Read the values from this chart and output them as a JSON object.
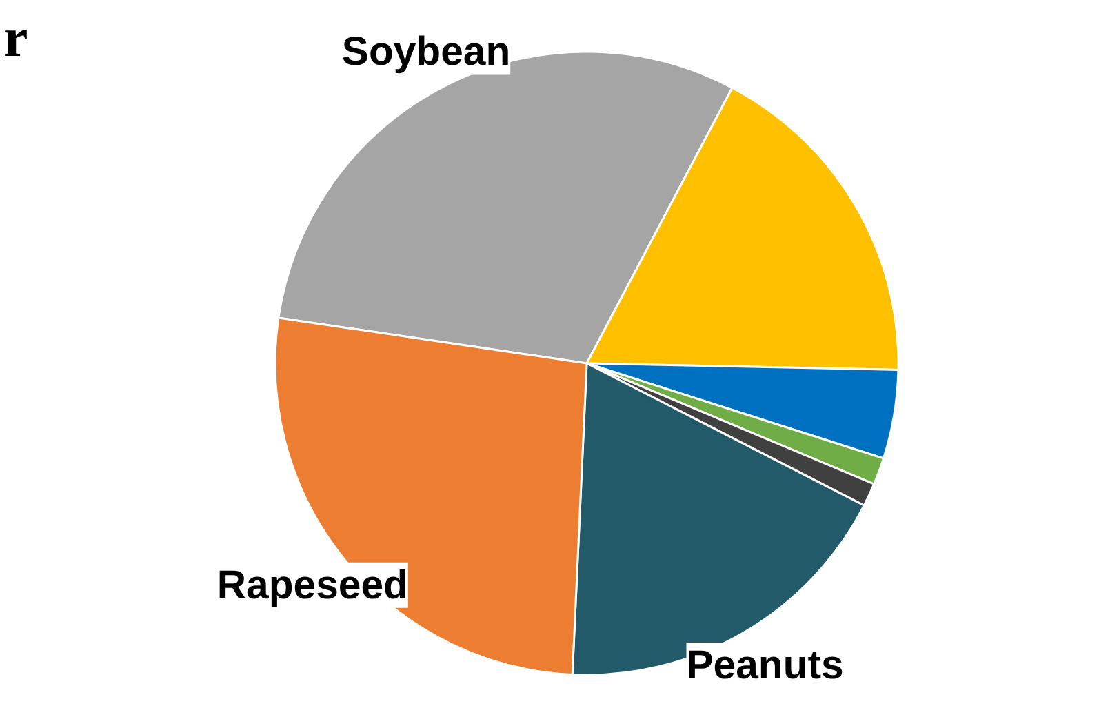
{
  "chart_data": {
    "type": "pie",
    "title": "r",
    "categories": [
      "Soybean",
      null,
      null,
      null,
      null,
      "Peanuts",
      "Rapeseed"
    ],
    "values": [
      30.4,
      17.6,
      4.6,
      1.4,
      1.2,
      18.2,
      26.6
    ],
    "colors": [
      "#a5a5a5",
      "#ffc000",
      "#0070c0",
      "#70ad47",
      "#404040",
      "#225a69",
      "#ed7d31"
    ],
    "legend": false
  }
}
